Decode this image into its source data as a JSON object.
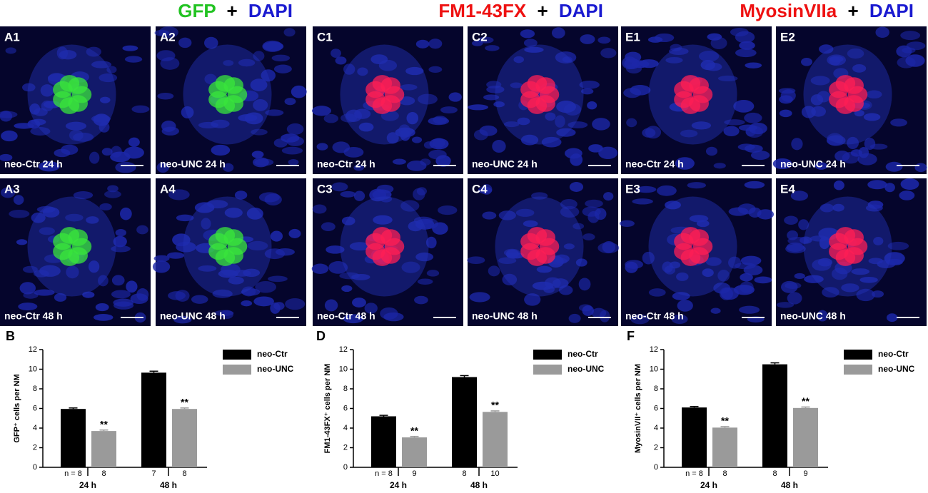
{
  "headers": [
    {
      "marker": "GFP",
      "joiner": "+",
      "counterstain": "DAPI"
    },
    {
      "marker": "FM1-43FX",
      "joiner": "+",
      "counterstain": "DAPI"
    },
    {
      "marker": "MyosinVIIa",
      "joiner": "+",
      "counterstain": "DAPI"
    }
  ],
  "panels": [
    {
      "id": "A1",
      "caption": "neo-Ctr 24 h"
    },
    {
      "id": "A2",
      "caption": "neo-UNC 24 h"
    },
    {
      "id": "C1",
      "caption": "neo-Ctr 24 h"
    },
    {
      "id": "C2",
      "caption": "neo-UNC 24 h"
    },
    {
      "id": "E1",
      "caption": "neo-Ctr 24 h"
    },
    {
      "id": "E2",
      "caption": "neo-UNC 24 h"
    },
    {
      "id": "A3",
      "caption": "neo-Ctr 48 h"
    },
    {
      "id": "A4",
      "caption": "neo-UNC 48 h"
    },
    {
      "id": "C3",
      "caption": "neo-Ctr 48 h"
    },
    {
      "id": "C4",
      "caption": "neo-UNC 48 h"
    },
    {
      "id": "E3",
      "caption": "neo-Ctr 48 h"
    },
    {
      "id": "E4",
      "caption": "neo-UNC 48 h"
    }
  ],
  "chart_data": [
    {
      "type": "bar",
      "panel": "B",
      "ylabel": "GFP⁺ cells per NM",
      "categories": [
        "24 h",
        "48 h"
      ],
      "n_labels": [
        "n = 8",
        "8",
        "7",
        "8"
      ],
      "series": [
        {
          "name": "neo-Ctr",
          "color": "#000000",
          "values": [
            5.95,
            9.65
          ],
          "errors": [
            0.1,
            0.15
          ]
        },
        {
          "name": "neo-UNC",
          "color": "#9a9a9a",
          "values": [
            3.7,
            5.95
          ],
          "errors": [
            0.1,
            0.1
          ],
          "annotations": [
            "**",
            "**"
          ]
        }
      ],
      "ylim": [
        0,
        12
      ],
      "yticks": [
        0,
        2,
        4,
        6,
        8,
        10,
        12
      ]
    },
    {
      "type": "bar",
      "panel": "D",
      "ylabel": "FM1-43FX⁺ cells per NM",
      "categories": [
        "24 h",
        "48 h"
      ],
      "n_labels": [
        "n = 8",
        "9",
        "8",
        "10"
      ],
      "series": [
        {
          "name": "neo-Ctr",
          "color": "#000000",
          "values": [
            5.2,
            9.2
          ],
          "errors": [
            0.1,
            0.15
          ]
        },
        {
          "name": "neo-UNC",
          "color": "#9a9a9a",
          "values": [
            3.05,
            5.65
          ],
          "errors": [
            0.1,
            0.1
          ],
          "annotations": [
            "**",
            "**"
          ]
        }
      ],
      "ylim": [
        0,
        12
      ],
      "yticks": [
        0,
        2,
        4,
        6,
        8,
        10,
        12
      ]
    },
    {
      "type": "bar",
      "panel": "F",
      "ylabel": "MyosinVII⁺ cells per NM",
      "categories": [
        "24 h",
        "48 h"
      ],
      "n_labels": [
        "n = 8",
        "8",
        "8",
        "9"
      ],
      "series": [
        {
          "name": "neo-Ctr",
          "color": "#000000",
          "values": [
            6.1,
            10.5
          ],
          "errors": [
            0.1,
            0.15
          ]
        },
        {
          "name": "neo-UNC",
          "color": "#9a9a9a",
          "values": [
            4.05,
            6.05
          ],
          "errors": [
            0.1,
            0.1
          ],
          "annotations": [
            "**",
            "**"
          ]
        }
      ],
      "ylim": [
        0,
        12
      ],
      "yticks": [
        0,
        2,
        4,
        6,
        8,
        10,
        12
      ]
    }
  ]
}
